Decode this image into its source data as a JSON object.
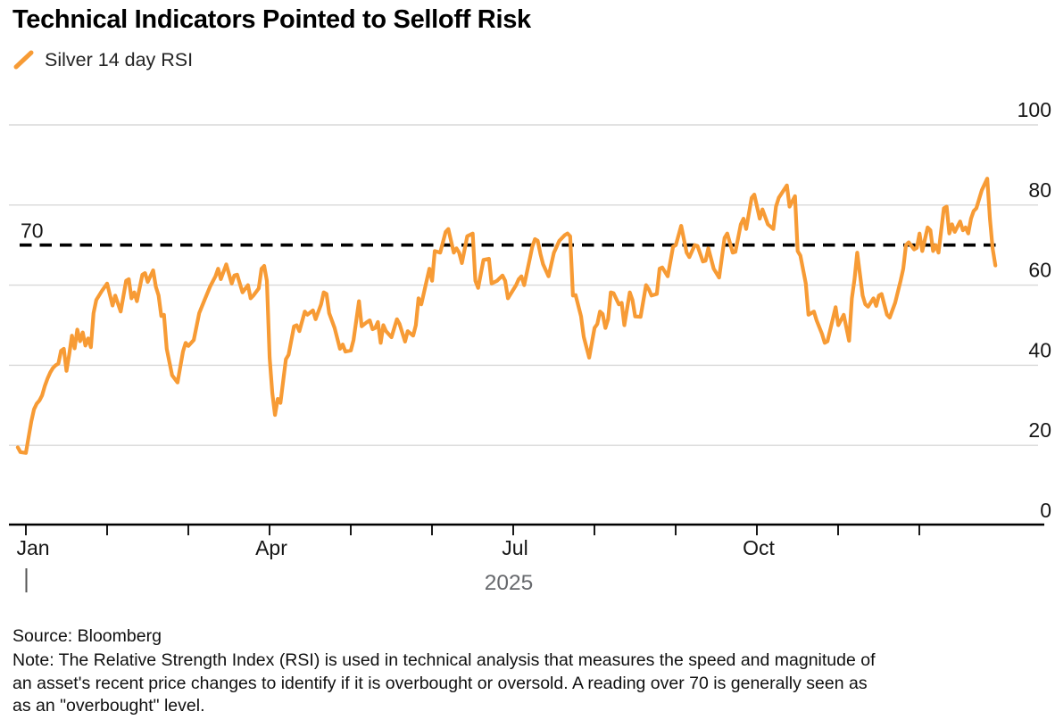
{
  "header": {
    "title": "Technical Indicators Pointed to Selloff Risk"
  },
  "legend": {
    "series_label": "Silver 14 day RSI",
    "swatch_color": "#F79B35"
  },
  "chart_data": {
    "type": "line",
    "title": "Silver 14 day RSI",
    "legend_position": "top-left",
    "grid": "horizontal",
    "x_axis": {
      "year_label": "2025",
      "months_shown": 12,
      "tick_labels": [
        "Jan",
        "Apr",
        "Jul",
        "Oct"
      ],
      "labeled_month_indices": [
        0,
        3,
        6,
        9
      ]
    },
    "y_axis": {
      "ticks": [
        100,
        80,
        60,
        40,
        20,
        0
      ],
      "range": [
        0,
        100
      ],
      "side": "right"
    },
    "threshold": {
      "value": 70,
      "label": "70",
      "style": "dashed",
      "color": "#000000",
      "meaning": "overbought level"
    },
    "colors": {
      "line": "#F79B35",
      "grid": "#d8d8d8",
      "axis": "#000000",
      "year_text": "#67696d",
      "tick_text": "#161616"
    },
    "series": [
      {
        "name": "Silver 14 day RSI",
        "color": "#F79B35",
        "x_unit": "day_of_2025",
        "points": [
          [
            -3,
            19.5
          ],
          [
            -2,
            18.3
          ],
          [
            0,
            18.1
          ],
          [
            1,
            22
          ],
          [
            2,
            26
          ],
          [
            3,
            29
          ],
          [
            4,
            30.4
          ],
          [
            5,
            31.2
          ],
          [
            6,
            32.5
          ],
          [
            7,
            34.8
          ],
          [
            8,
            36.7
          ],
          [
            9,
            38.2
          ],
          [
            10,
            39.3
          ],
          [
            11,
            40
          ],
          [
            12,
            40.4
          ],
          [
            13,
            43.6
          ],
          [
            14,
            44.1
          ],
          [
            15,
            38.6
          ],
          [
            16,
            42.6
          ],
          [
            17,
            47.4
          ],
          [
            18,
            44.2
          ],
          [
            19,
            48.9
          ],
          [
            20,
            46
          ],
          [
            21,
            48.2
          ],
          [
            22,
            44.9
          ],
          [
            23,
            46.7
          ],
          [
            24,
            44.5
          ],
          [
            25,
            53
          ],
          [
            26,
            56.3
          ],
          [
            28,
            58.5
          ],
          [
            30,
            60.4
          ],
          [
            32,
            54.9
          ],
          [
            33,
            57.4
          ],
          [
            35,
            53.4
          ],
          [
            37,
            61.1
          ],
          [
            38,
            61.5
          ],
          [
            39,
            56.7
          ],
          [
            40,
            58.2
          ],
          [
            41,
            56
          ],
          [
            43,
            62.6
          ],
          [
            44,
            63
          ],
          [
            45,
            60.8
          ],
          [
            47,
            63.7
          ],
          [
            48,
            59.6
          ],
          [
            49,
            57.4
          ],
          [
            50,
            52.3
          ],
          [
            51,
            52.6
          ],
          [
            52,
            44.1
          ],
          [
            54,
            37.5
          ],
          [
            56,
            35.7
          ],
          [
            58,
            43.4
          ],
          [
            59,
            45.6
          ],
          [
            60,
            44.8
          ],
          [
            62,
            46.3
          ],
          [
            64,
            53
          ],
          [
            66,
            56.3
          ],
          [
            68,
            59.6
          ],
          [
            70,
            62.2
          ],
          [
            71,
            64.1
          ],
          [
            72,
            61.5
          ],
          [
            74,
            65.2
          ],
          [
            76,
            60.4
          ],
          [
            77,
            62.4
          ],
          [
            78,
            62.6
          ],
          [
            80,
            58.2
          ],
          [
            82,
            60
          ],
          [
            83,
            56.7
          ],
          [
            84,
            57.4
          ],
          [
            86,
            59.2
          ],
          [
            87,
            64.1
          ],
          [
            88,
            64.8
          ],
          [
            89,
            61.1
          ],
          [
            90,
            41.9
          ],
          [
            91,
            33
          ],
          [
            92,
            27.6
          ],
          [
            93,
            31.6
          ],
          [
            94,
            30.6
          ],
          [
            96,
            41.5
          ],
          [
            97,
            42.6
          ],
          [
            99,
            49.7
          ],
          [
            100,
            50
          ],
          [
            101,
            48.5
          ],
          [
            103,
            53.4
          ],
          [
            104,
            52.6
          ],
          [
            106,
            53.7
          ],
          [
            107,
            51.5
          ],
          [
            109,
            55.2
          ],
          [
            110,
            58.2
          ],
          [
            111,
            57.8
          ],
          [
            112,
            53
          ],
          [
            114,
            49.3
          ],
          [
            116,
            44.1
          ],
          [
            117,
            45.2
          ],
          [
            118,
            43.4
          ],
          [
            120,
            43.7
          ],
          [
            121,
            46.3
          ],
          [
            123,
            56
          ],
          [
            124,
            49.7
          ],
          [
            126,
            50.8
          ],
          [
            127,
            51.2
          ],
          [
            128,
            49
          ],
          [
            129,
            49.3
          ],
          [
            130,
            50.8
          ],
          [
            131,
            45.6
          ],
          [
            132,
            50
          ],
          [
            133,
            48.5
          ],
          [
            135,
            47
          ],
          [
            137,
            51.5
          ],
          [
            138,
            50.3
          ],
          [
            140,
            45.9
          ],
          [
            141,
            48.5
          ],
          [
            143,
            47.4
          ],
          [
            144,
            50
          ],
          [
            145,
            56.7
          ],
          [
            146,
            55.2
          ],
          [
            148,
            61.1
          ],
          [
            149,
            64.1
          ],
          [
            150,
            61.1
          ],
          [
            151,
            68.5
          ],
          [
            153,
            68.1
          ],
          [
            155,
            73.3
          ],
          [
            156,
            74
          ],
          [
            158,
            68.1
          ],
          [
            159,
            69.2
          ],
          [
            160,
            68.1
          ],
          [
            161,
            65.5
          ],
          [
            163,
            72.2
          ],
          [
            165,
            72.9
          ],
          [
            166,
            61.1
          ],
          [
            167,
            59.3
          ],
          [
            169,
            66.3
          ],
          [
            171,
            66.6
          ],
          [
            172,
            60.4
          ],
          [
            174,
            61.1
          ],
          [
            176,
            62.4
          ],
          [
            177,
            61.1
          ],
          [
            178,
            56.7
          ],
          [
            181,
            60
          ],
          [
            182,
            61.5
          ],
          [
            183,
            62.2
          ],
          [
            184,
            60
          ],
          [
            186,
            66.3
          ],
          [
            187,
            69.6
          ],
          [
            188,
            71.5
          ],
          [
            189,
            71.1
          ],
          [
            190,
            67.8
          ],
          [
            191,
            65.2
          ],
          [
            193,
            62.2
          ],
          [
            195,
            68.1
          ],
          [
            197,
            71.1
          ],
          [
            199,
            72.5
          ],
          [
            200,
            72.9
          ],
          [
            201,
            72.2
          ],
          [
            202,
            57.4
          ],
          [
            203,
            57.5
          ],
          [
            205,
            52.2
          ],
          [
            206,
            47.1
          ],
          [
            208,
            41.9
          ],
          [
            210,
            49.3
          ],
          [
            211,
            50.3
          ],
          [
            212,
            53.4
          ],
          [
            213,
            52.8
          ],
          [
            214,
            49.3
          ],
          [
            215,
            51.5
          ],
          [
            216,
            58.2
          ],
          [
            217,
            58
          ],
          [
            219,
            55.2
          ],
          [
            220,
            55.6
          ],
          [
            221,
            50
          ],
          [
            223,
            58.2
          ],
          [
            224,
            56.3
          ],
          [
            225,
            52.2
          ],
          [
            227,
            52.1
          ],
          [
            229,
            60
          ],
          [
            230,
            59
          ],
          [
            231,
            57.4
          ],
          [
            233,
            57.8
          ],
          [
            234,
            64.1
          ],
          [
            235,
            64.4
          ],
          [
            237,
            62.2
          ],
          [
            239,
            69.6
          ],
          [
            240,
            70
          ],
          [
            242,
            74.8
          ],
          [
            244,
            68.1
          ],
          [
            245,
            67
          ],
          [
            247,
            70
          ],
          [
            248,
            69.8
          ],
          [
            250,
            65.9
          ],
          [
            251,
            66.1
          ],
          [
            252,
            69.2
          ],
          [
            254,
            64.1
          ],
          [
            256,
            61.9
          ],
          [
            258,
            71.8
          ],
          [
            259,
            72.9
          ],
          [
            261,
            68.1
          ],
          [
            262,
            68.3
          ],
          [
            264,
            75.2
          ],
          [
            265,
            76.6
          ],
          [
            266,
            74
          ],
          [
            268,
            81.8
          ],
          [
            269,
            82.6
          ],
          [
            271,
            76.6
          ],
          [
            272,
            78.9
          ],
          [
            274,
            75.2
          ],
          [
            276,
            74
          ],
          [
            277,
            79.6
          ],
          [
            278,
            81.8
          ],
          [
            281,
            84.9
          ],
          [
            282,
            79.6
          ],
          [
            284,
            82.2
          ],
          [
            285,
            68.5
          ],
          [
            286,
            67.4
          ],
          [
            288,
            60.4
          ],
          [
            289,
            52.6
          ],
          [
            291,
            53.4
          ],
          [
            292,
            51.2
          ],
          [
            294,
            47.8
          ],
          [
            295,
            45.6
          ],
          [
            296,
            46
          ],
          [
            299,
            54.5
          ],
          [
            300,
            50
          ],
          [
            302,
            52.6
          ],
          [
            304,
            46.1
          ],
          [
            305,
            56.7
          ],
          [
            306,
            61.5
          ],
          [
            307,
            68.1
          ],
          [
            309,
            57.4
          ],
          [
            310,
            55.2
          ],
          [
            311,
            54.6
          ],
          [
            313,
            56.7
          ],
          [
            314,
            54.8
          ],
          [
            315,
            57.4
          ],
          [
            316,
            57.8
          ],
          [
            318,
            52.6
          ],
          [
            319,
            51.9
          ],
          [
            321,
            55.6
          ],
          [
            323,
            61.1
          ],
          [
            324,
            64.1
          ],
          [
            325,
            70
          ],
          [
            326,
            70.7
          ],
          [
            328,
            68.9
          ],
          [
            329,
            69.3
          ],
          [
            330,
            72.9
          ],
          [
            331,
            68.5
          ],
          [
            333,
            74.4
          ],
          [
            334,
            73.7
          ],
          [
            335,
            68.5
          ],
          [
            336,
            70
          ],
          [
            337,
            68.1
          ],
          [
            339,
            79.2
          ],
          [
            340,
            79.6
          ],
          [
            341,
            72.9
          ],
          [
            342,
            75.2
          ],
          [
            343,
            73.3
          ],
          [
            345,
            75.9
          ],
          [
            346,
            73.7
          ],
          [
            347,
            74.4
          ],
          [
            348,
            72.9
          ],
          [
            349,
            76.6
          ],
          [
            350,
            78.5
          ],
          [
            351,
            79.2
          ],
          [
            352,
            81.5
          ],
          [
            353,
            83.7
          ],
          [
            355,
            86.6
          ],
          [
            356,
            76.6
          ],
          [
            357,
            69.2
          ],
          [
            358,
            64.9
          ]
        ]
      }
    ]
  },
  "footer": {
    "source": "Source: Bloomberg",
    "note_lines": [
      "Note: The Relative Strength Index (RSI) is used in technical analysis that measures the speed and magnitude of",
      "an asset's recent price changes to identify if it is overbought or oversold. A reading over 70 is generally seen as",
      "as an \"overbought\" level."
    ]
  }
}
